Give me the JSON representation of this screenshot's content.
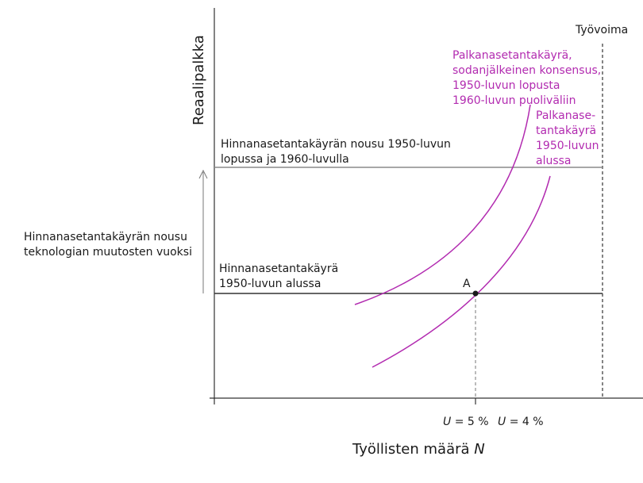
{
  "axes": {
    "y_label": "Reaalipalkka",
    "x_label_main": "Työllisten määrä ",
    "x_label_var": "N"
  },
  "labor_force": {
    "label": "Työvoima"
  },
  "wage_curve_later": {
    "lines": [
      "Palkanasetantakäyrä,",
      "sodanjälkeinen konsensus,",
      "1950-luvun lopusta",
      "1960-luvun puoliväliin"
    ]
  },
  "wage_curve_early": {
    "lines": [
      "Palkanase-",
      "tantakäyrä",
      "1950-luvun",
      "alussa"
    ]
  },
  "price_curve_high": {
    "lines": [
      "Hinnanasetantakäyrän nousu 1950-luvun",
      "lopussa ja 1960-luvulla"
    ]
  },
  "price_curve_low": {
    "lines": [
      "Hinnanasetantakäyrä",
      "1950-luvun alussa"
    ]
  },
  "shift_note": {
    "lines": [
      "Hinnanasetantakäyrän nousu",
      "teknologian muutosten vuoksi"
    ]
  },
  "point_a": {
    "label": "A"
  },
  "unemployment": {
    "u1_var": "U",
    "u1_value": " = 5 %",
    "u2_var": "U",
    "u2_value": " = 4 %"
  },
  "colors": {
    "wage_curve": "#b22bb0",
    "price_curve_low": "#333333",
    "price_curve_high": "#8a8a8a",
    "axis": "#333333"
  }
}
